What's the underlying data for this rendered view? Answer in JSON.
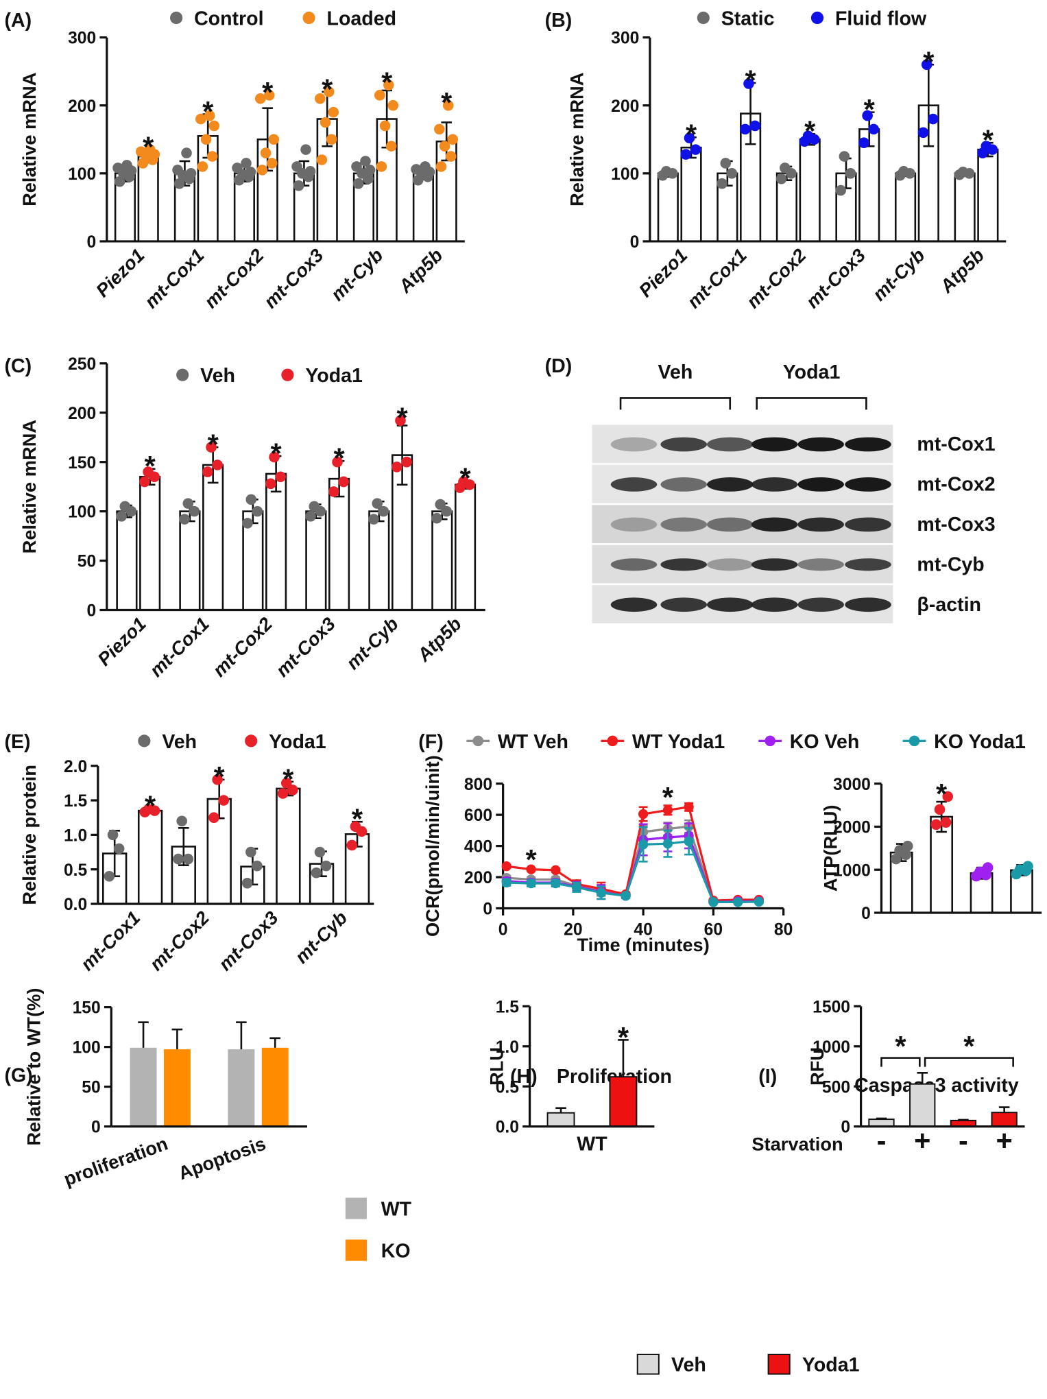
{
  "chart_data": [
    {
      "type": "bar",
      "panel": "(A)",
      "ylabel": "Relative mRNA",
      "categories": [
        "Piezo1",
        "mt-Cox1",
        "mt-Cox2",
        "mt-Cox3",
        "mt-Cyb",
        "Atp5b"
      ],
      "bar_color": "#ffffff",
      "error_direction": "both",
      "ylim": [
        0,
        300
      ],
      "yticks": [
        0,
        100,
        200,
        300
      ],
      "series": [
        {
          "name": "Control",
          "color": "#6b6b6b",
          "values": [
            100,
            100,
            100,
            100,
            100,
            100
          ],
          "errors": [
            12,
            18,
            12,
            18,
            15,
            9
          ],
          "points": [
            [
              88,
              95,
              100,
              104,
              108,
              112
            ],
            [
              85,
              92,
              97,
              100,
              105,
              130
            ],
            [
              90,
              95,
              98,
              102,
              108,
              115
            ],
            [
              82,
              95,
              100,
              103,
              110,
              135
            ],
            [
              85,
              92,
              100,
              105,
              110,
              118
            ],
            [
              90,
              95,
              100,
              102,
              106,
              110
            ]
          ]
        },
        {
          "name": "Loaded",
          "color": "#f28a1e",
          "values": [
            125,
            155,
            150,
            180,
            180,
            147
          ],
          "errors": [
            9,
            32,
            46,
            40,
            42,
            28
          ],
          "points": [
            [
              115,
              120,
              125,
              128,
              132,
              135
            ],
            [
              110,
              125,
              150,
              170,
              180,
              185
            ],
            [
              105,
              115,
              130,
              150,
              210,
              215
            ],
            [
              120,
              150,
              175,
              190,
              210,
              220
            ],
            [
              110,
              140,
              170,
              200,
              215,
              230
            ],
            [
              110,
              125,
              140,
              150,
              165,
              200
            ]
          ]
        }
      ],
      "stars": [
        "*",
        "*",
        "*",
        "*",
        "*",
        "*"
      ]
    },
    {
      "type": "bar",
      "panel": "(B)",
      "ylabel": "Relative mRNA",
      "categories": [
        "Piezo1",
        "mt-Cox1",
        "mt-Cox2",
        "mt-Cox3",
        "mt-Cyb",
        "Atp5b"
      ],
      "bar_color": "#ffffff",
      "error_direction": "both",
      "ylim": [
        0,
        300
      ],
      "yticks": [
        0,
        100,
        200,
        300
      ],
      "series": [
        {
          "name": "Static",
          "color": "#6b6b6b",
          "values": [
            100,
            100,
            100,
            100,
            100,
            100
          ],
          "errors": [
            5,
            18,
            10,
            22,
            4,
            3
          ],
          "points": [
            [
              97,
              100,
              103
            ],
            [
              85,
              100,
              115
            ],
            [
              92,
              100,
              108
            ],
            [
              75,
              100,
              125
            ],
            [
              97,
              100,
              103
            ],
            [
              98,
              100,
              102
            ]
          ]
        },
        {
          "name": "Fluid flow",
          "color": "#1010e8",
          "values": [
            138,
            188,
            150,
            165,
            200,
            135
          ],
          "errors": [
            15,
            45,
            8,
            25,
            60,
            10
          ],
          "points": [
            [
              128,
              135,
              152
            ],
            [
              165,
              170,
              232
            ],
            [
              147,
              150,
              155
            ],
            [
              145,
              165,
              185
            ],
            [
              160,
              180,
              260
            ],
            [
              130,
              135,
              140
            ]
          ]
        }
      ],
      "stars": [
        "*",
        "*",
        "*",
        "*",
        "*",
        "*"
      ]
    },
    {
      "type": "bar",
      "panel": "(C)",
      "ylabel": "Relative mRNA",
      "categories": [
        "Piezo1",
        "mt-Cox1",
        "mt-Cox2",
        "mt-Cox3",
        "mt-Cyb",
        "Atp5b"
      ],
      "bar_color": "#ffffff",
      "error_direction": "both",
      "ylim": [
        0,
        250
      ],
      "yticks": [
        0,
        50,
        100,
        150,
        200,
        250
      ],
      "series": [
        {
          "name": "Veh",
          "color": "#6b6b6b",
          "values": [
            100,
            100,
            100,
            100,
            100,
            100
          ],
          "errors": [
            6,
            10,
            12,
            7,
            10,
            8
          ],
          "points": [
            [
              95,
              100,
              105
            ],
            [
              92,
              100,
              108
            ],
            [
              88,
              100,
              112
            ],
            [
              95,
              100,
              105
            ],
            [
              92,
              100,
              108
            ],
            [
              93,
              100,
              107
            ]
          ]
        },
        {
          "name": "Yoda1",
          "color": "#e8202a",
          "values": [
            135,
            147,
            138,
            133,
            157,
            127
          ],
          "errors": [
            8,
            18,
            18,
            18,
            30,
            4
          ],
          "points": [
            [
              130,
              135,
              140
            ],
            [
              140,
              147,
              165
            ],
            [
              128,
              135,
              155
            ],
            [
              120,
              130,
              150
            ],
            [
              145,
              150,
              192
            ],
            [
              124,
              127,
              130
            ]
          ]
        }
      ],
      "stars": [
        "*",
        "*",
        "*",
        "*",
        "*",
        "*"
      ]
    },
    {
      "type": "bar",
      "panel": "(E)",
      "ylabel": "Relative protein",
      "categories": [
        "mt-Cox1",
        "mt-Cox2",
        "mt-Cox3",
        "mt-Cyb"
      ],
      "bar_color": "#ffffff",
      "error_direction": "both",
      "ylim": [
        0,
        2
      ],
      "yticks": [
        {
          "value": 0,
          "label": "0.0"
        },
        0.5,
        {
          "value": 1,
          "label": "1.0"
        },
        1.5,
        {
          "value": 2,
          "label": "2.0"
        }
      ],
      "series": [
        {
          "name": "Veh",
          "color": "#6b6b6b",
          "values": [
            0.73,
            0.83,
            0.54,
            0.58
          ],
          "errors": [
            0.33,
            0.27,
            0.26,
            0.18
          ],
          "points": [
            [
              0.4,
              0.8,
              1.0
            ],
            [
              0.65,
              0.65,
              1.2
            ],
            [
              0.3,
              0.55,
              0.75
            ],
            [
              0.45,
              0.55,
              0.75
            ]
          ]
        },
        {
          "name": "Yoda1",
          "color": "#e8202a",
          "values": [
            1.35,
            1.52,
            1.67,
            1.01
          ],
          "errors": [
            0.03,
            0.28,
            0.1,
            0.18
          ],
          "points": [
            [
              1.33,
              1.35,
              1.37
            ],
            [
              1.25,
              1.5,
              1.8
            ],
            [
              1.6,
              1.65,
              1.75
            ],
            [
              0.85,
              1.05,
              1.12
            ]
          ]
        }
      ],
      "stars": [
        "*",
        "*",
        "*",
        "*"
      ]
    },
    {
      "type": "line",
      "panel": "(F)",
      "ylabel": "OCR(pmol/min/uinit)",
      "xlabel": "Time (minutes)",
      "xlim": [
        0,
        80
      ],
      "xticks": [
        0,
        20,
        40,
        60,
        80
      ],
      "ylim": [
        0,
        800
      ],
      "yticks": [
        0,
        200,
        400,
        600,
        800
      ],
      "x": [
        1,
        8,
        15,
        21,
        28,
        35,
        40,
        47,
        53,
        60,
        67,
        73
      ],
      "series": [
        {
          "name": "WT Veh",
          "color": "#8c8c8c",
          "values": [
            195,
            185,
            185,
            145,
            110,
            85,
            490,
            510,
            525,
            45,
            45,
            45
          ],
          "errors": [
            15,
            15,
            15,
            25,
            30,
            15,
            40,
            40,
            40,
            5,
            5,
            5
          ]
        },
        {
          "name": "WT Yoda1",
          "color": "#ee1c1c",
          "values": [
            270,
            250,
            245,
            155,
            125,
            90,
            605,
            630,
            650,
            50,
            55,
            55
          ],
          "errors": [
            10,
            10,
            10,
            25,
            40,
            10,
            45,
            30,
            25,
            5,
            5,
            5
          ]
        },
        {
          "name": "KO Veh",
          "color": "#a020f0",
          "values": [
            175,
            165,
            165,
            140,
            105,
            80,
            440,
            455,
            465,
            40,
            45,
            45
          ],
          "errors": [
            20,
            20,
            20,
            30,
            45,
            15,
            100,
            90,
            80,
            5,
            5,
            5
          ]
        },
        {
          "name": "KO Yoda1",
          "color": "#1a9aa8",
          "values": [
            165,
            160,
            160,
            135,
            100,
            80,
            410,
            415,
            430,
            40,
            40,
            42
          ],
          "errors": [
            20,
            20,
            20,
            30,
            40,
            15,
            110,
            85,
            85,
            5,
            5,
            5
          ]
        }
      ],
      "annotations": [
        {
          "text": "*",
          "x": 8
        },
        {
          "text": "*",
          "x": 47
        }
      ]
    },
    {
      "type": "bar",
      "ylabel": "ATP(RLU)",
      "bar_color": "#ffffff",
      "error_direction": "both",
      "ylim": [
        0,
        3000
      ],
      "yticks": [
        0,
        1000,
        2000,
        3000
      ],
      "series": [
        {
          "colors": [
            "#6b6b6b",
            "#e8202a",
            "#a020f0",
            "#1a9aa8"
          ],
          "values": [
            1400,
            2230,
            920,
            990
          ],
          "errors": [
            200,
            350,
            130,
            120
          ],
          "points": [
            [
              1250,
              1350,
              1450,
              1550
            ],
            [
              2050,
              2100,
              2400,
              2700
            ],
            [
              850,
              880,
              950,
              1050
            ],
            [
              900,
              980,
              1000,
              1080
            ]
          ]
        }
      ],
      "stars": [
        null,
        "*",
        null,
        null
      ]
    },
    {
      "type": "bar",
      "panel": "(G)",
      "ylabel": "Relative to WT(%)",
      "categories": [
        "proliferation",
        "Apoptosis"
      ],
      "error_direction": "up",
      "ylim": [
        0,
        150
      ],
      "yticks": [
        0,
        50,
        100,
        150
      ],
      "series": [
        {
          "name": "WT",
          "color": "#b3b3b3",
          "values": [
            99,
            97
          ],
          "errors": [
            32,
            34
          ]
        },
        {
          "name": "KO",
          "color": "#ff8c00",
          "values": [
            97,
            99
          ],
          "errors": [
            25,
            12
          ]
        }
      ]
    },
    {
      "type": "bar",
      "panel": "(H)",
      "title": "Proliferation",
      "ylabel": "RLU",
      "categories": [
        "WT"
      ],
      "error_direction": "up",
      "ylim": [
        0,
        1.5
      ],
      "yticks": [
        {
          "value": 0,
          "label": "0.0"
        },
        0.5,
        {
          "value": 1,
          "label": "1.0"
        },
        1.5
      ],
      "series": [
        {
          "color": "#d9d9d9",
          "values": [
            0.17
          ],
          "errors": [
            0.06
          ]
        },
        {
          "color": "#ee1111",
          "values": [
            0.62
          ],
          "errors": [
            0.46
          ]
        }
      ],
      "stars": [
        "*"
      ]
    },
    {
      "type": "bar",
      "panel": "(I)",
      "title": "Caspase3 activity",
      "ylabel": "RFU",
      "xlabel": "Starvation",
      "categories": [
        "-",
        "+",
        "-",
        "+"
      ],
      "error_direction": "up",
      "ylim": [
        0,
        1500
      ],
      "yticks": [
        0,
        500,
        1000,
        1500
      ],
      "series": [
        {
          "name": "Veh",
          "color": "#d9d9d9",
          "values": [
            90,
            530,
            null,
            null
          ],
          "errors": [
            10,
            140,
            null,
            null
          ]
        },
        {
          "name": "Yoda1",
          "color": "#ee1111",
          "values": [
            null,
            null,
            75,
            175
          ],
          "errors": [
            null,
            null,
            8,
            65
          ]
        }
      ],
      "brackets": [
        {
          "text": "*",
          "from": 0,
          "to": 1
        },
        {
          "text": "*",
          "from": 1,
          "to": 3
        }
      ]
    }
  ],
  "blot": {
    "panel": "(D)",
    "groups": [
      "Veh",
      "Yoda1"
    ],
    "rows": [
      "mt-Cox1",
      "mt-Cox2",
      "mt-Cox3",
      "mt-Cyb",
      "β-actin"
    ]
  }
}
